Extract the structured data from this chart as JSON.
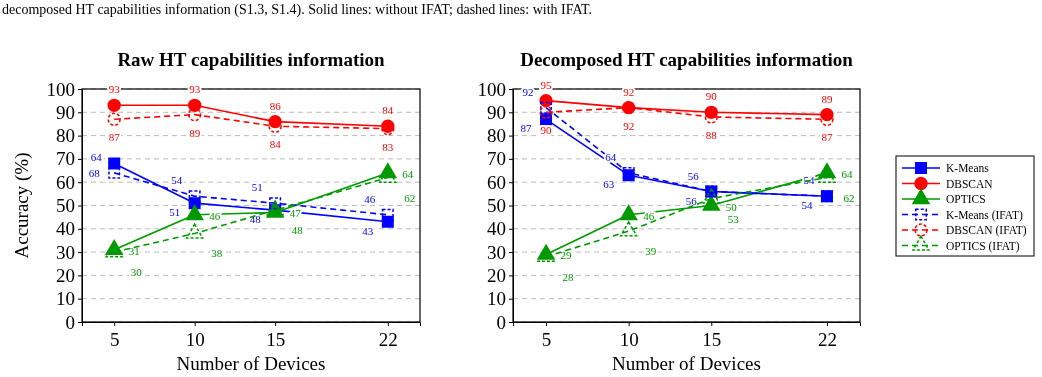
{
  "chart_data": [
    {
      "type": "line",
      "title": "Raw HT capabilities information",
      "xlabel": "Number of Devices",
      "ylabel": "Accuracy (%)",
      "annotations": [
        "decomposed HT capabilities information (S1.3, S1.4). Solid lines: without IFAT; dashed lines: with IFAT."
      ],
      "x": [
        5,
        10,
        15,
        22
      ],
      "xlim": [
        3,
        24
      ],
      "xticks": [
        5,
        10,
        15,
        22
      ],
      "ylim": [
        0,
        100
      ],
      "yticks": [
        0,
        10,
        20,
        30,
        40,
        50,
        60,
        70,
        80,
        90,
        100
      ],
      "grid": "y",
      "legend": false,
      "data_labels": true,
      "series": [
        {
          "color": "#0000ff",
          "marker": "square",
          "line_style": "solid",
          "values": [
            68,
            51,
            48,
            43
          ]
        },
        {
          "color": "#ff0000",
          "marker": "circle",
          "line_style": "solid",
          "values": [
            93,
            93,
            86,
            84
          ]
        },
        {
          "color": "#009900",
          "marker": "triangle",
          "line_style": "solid",
          "values": [
            31,
            46,
            47,
            64
          ]
        },
        {
          "color": "#0000ff",
          "marker": "square",
          "line_style": "dashed",
          "values": [
            64,
            54,
            51,
            46
          ]
        },
        {
          "color": "#ff0000",
          "marker": "circle",
          "line_style": "dashed",
          "values": [
            87,
            89,
            84,
            83
          ]
        },
        {
          "color": "#009900",
          "marker": "triangle",
          "line_style": "dashed",
          "values": [
            30,
            38,
            48,
            62
          ]
        }
      ]
    },
    {
      "type": "line",
      "title": "Decomposed HT capabilities information",
      "xlabel": "Number of Devices",
      "x": [
        5,
        10,
        15,
        22
      ],
      "xlim": [
        3,
        24
      ],
      "xticks": [
        5,
        10,
        15,
        22
      ],
      "ylim": [
        0,
        100
      ],
      "yticks": [
        0,
        10,
        20,
        30,
        40,
        50,
        60,
        70,
        80,
        90,
        100
      ],
      "grid": "y",
      "legend": "right",
      "data_labels": true,
      "series": [
        {
          "name": "K-Means",
          "color": "#0000ff",
          "marker": "square",
          "line_style": "solid",
          "values": [
            87,
            63,
            56,
            54
          ]
        },
        {
          "name": "DBSCAN",
          "color": "#ff0000",
          "marker": "circle",
          "line_style": "solid",
          "values": [
            95,
            92,
            90,
            89
          ]
        },
        {
          "name": "OPTICS",
          "color": "#009900",
          "marker": "triangle",
          "line_style": "solid",
          "values": [
            29,
            46,
            50,
            64
          ]
        },
        {
          "name": "K-Means (IFAT)",
          "color": "#0000ff",
          "marker": "square",
          "line_style": "dashed",
          "values": [
            92,
            64,
            56,
            54
          ]
        },
        {
          "name": "DBSCAN (IFAT)",
          "color": "#ff0000",
          "marker": "circle",
          "line_style": "dashed",
          "values": [
            90,
            92,
            88,
            87
          ]
        },
        {
          "name": "OPTICS (IFAT)",
          "color": "#009900",
          "marker": "triangle",
          "line_style": "dashed",
          "values": [
            28,
            39,
            53,
            62
          ]
        }
      ]
    }
  ]
}
